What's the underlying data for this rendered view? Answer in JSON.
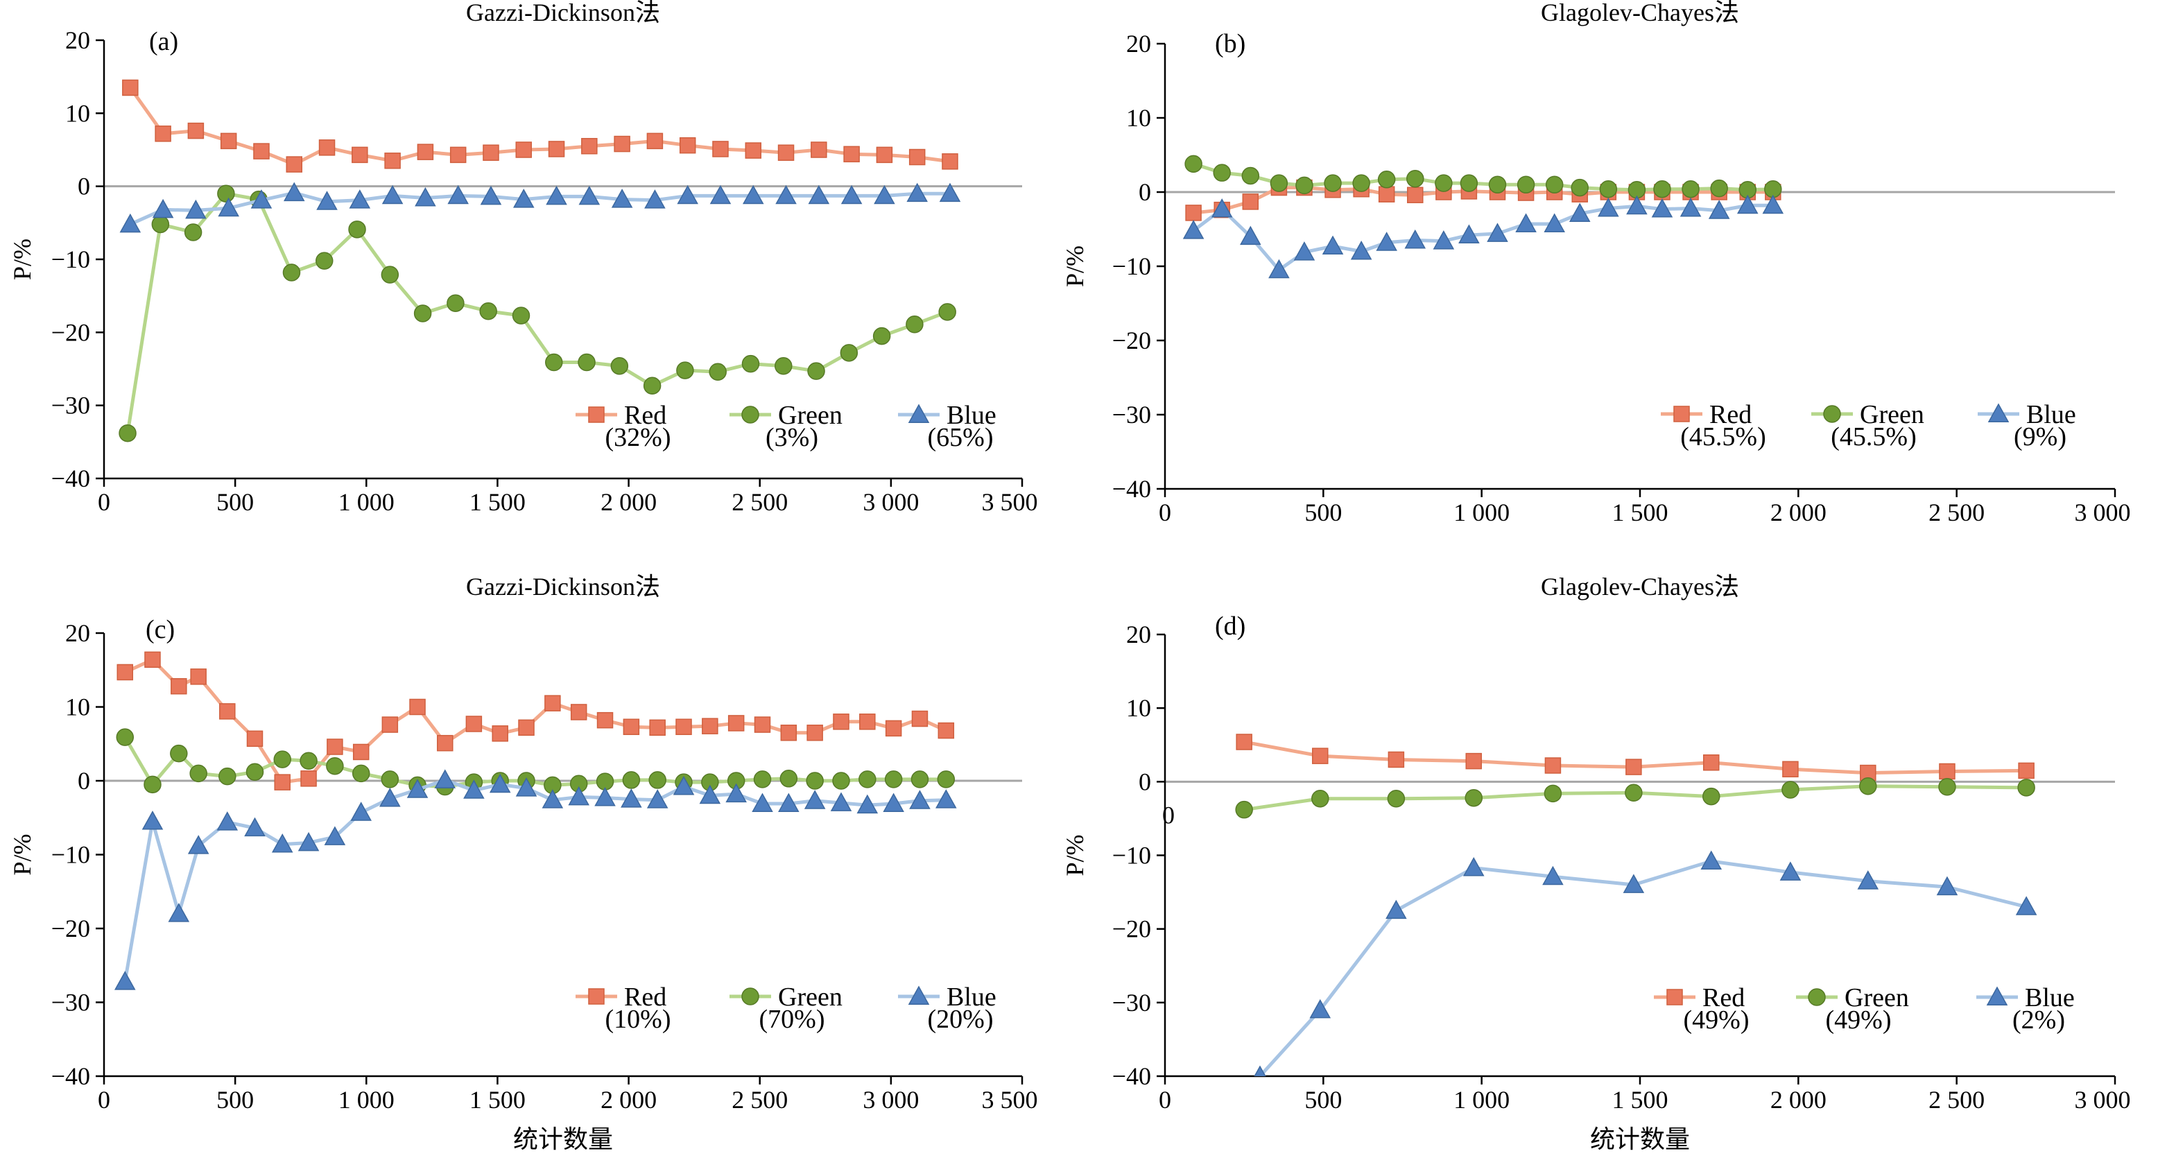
{
  "colors": {
    "red": "#E8775B",
    "red_line": "#F3A88A",
    "green": "#6E9B34",
    "green_line": "#B5D68A",
    "blue": "#4E7EBF",
    "blue_line": "#A7C4E4",
    "zero_line": "#A6A6A6"
  },
  "xlabel_common": "统计数量",
  "chart_data": [
    {
      "id": "a",
      "type": "line",
      "panel_label": "(a)",
      "title": "Gazzi-Dickinson法",
      "ylabel": "P/%",
      "xlabel": "",
      "xlim": [
        0,
        3500
      ],
      "ylim": [
        -40,
        20
      ],
      "xticks": [
        0,
        500,
        1000,
        1500,
        2000,
        2500,
        3000,
        3500
      ],
      "xtick_labels": [
        "0",
        "500",
        "1 000",
        "1 500",
        "2 000",
        "2 500",
        "3 000",
        "3 500"
      ],
      "yticks": [
        -40,
        -30,
        -20,
        -10,
        0,
        10,
        20
      ],
      "ytick_labels": [
        "−40",
        "−30",
        "−20",
        "−10",
        "0",
        "10",
        "20"
      ],
      "legend_position": "lower-right",
      "series": [
        {
          "name": "Red",
          "legend_pct": "(32%)",
          "marker": "square",
          "color": "red",
          "x": [
            100,
            225,
            350,
            475,
            600,
            725,
            850,
            975,
            1100,
            1225,
            1350,
            1475,
            1600,
            1725,
            1850,
            1975,
            2100,
            2225,
            2350,
            2475,
            2600,
            2725,
            2850,
            2975,
            3100,
            3225
          ],
          "values": [
            13.5,
            7.2,
            7.6,
            6.2,
            4.8,
            3.0,
            5.3,
            4.3,
            3.5,
            4.7,
            4.3,
            4.6,
            5.0,
            5.1,
            5.5,
            5.8,
            6.2,
            5.6,
            5.1,
            4.9,
            4.6,
            5.0,
            4.4,
            4.3,
            4.0,
            3.4
          ]
        },
        {
          "name": "Green",
          "legend_pct": "(3%)",
          "marker": "circle",
          "color": "green",
          "x": [
            90,
            215,
            340,
            465,
            590,
            715,
            840,
            965,
            1090,
            1215,
            1340,
            1465,
            1590,
            1715,
            1840,
            1965,
            2090,
            2215,
            2340,
            2465,
            2590,
            2715,
            2840,
            2965,
            3090,
            3215
          ],
          "values": [
            -33.8,
            -5.2,
            -6.3,
            -1.0,
            -1.8,
            -11.8,
            -10.2,
            -5.9,
            -12.1,
            -17.4,
            -16.0,
            -17.1,
            -17.7,
            -24.1,
            -24.1,
            -24.6,
            -27.3,
            -25.2,
            -25.4,
            -24.3,
            -24.6,
            -25.3,
            -22.8,
            -20.5,
            -18.9,
            -17.2
          ]
        },
        {
          "name": "Blue",
          "legend_pct": "(65%)",
          "marker": "triangle",
          "color": "blue",
          "x": [
            100,
            225,
            350,
            475,
            600,
            725,
            850,
            975,
            1100,
            1225,
            1350,
            1475,
            1600,
            1725,
            1850,
            1975,
            2100,
            2225,
            2350,
            2475,
            2600,
            2725,
            2850,
            2975,
            3100,
            3225
          ],
          "values": [
            -5.2,
            -3.2,
            -3.3,
            -3.0,
            -1.9,
            -0.9,
            -2.1,
            -1.9,
            -1.3,
            -1.6,
            -1.3,
            -1.4,
            -1.8,
            -1.4,
            -1.4,
            -1.8,
            -1.9,
            -1.3,
            -1.3,
            -1.3,
            -1.3,
            -1.3,
            -1.3,
            -1.3,
            -1.0,
            -1.0
          ]
        }
      ]
    },
    {
      "id": "b",
      "type": "line",
      "panel_label": "(b)",
      "title": "Glagolev-Chayes法",
      "ylabel": "P/%",
      "xlabel": "",
      "xlim": [
        0,
        3000
      ],
      "ylim": [
        -40,
        20
      ],
      "xticks": [
        0,
        500,
        1000,
        1500,
        2000,
        2500,
        3000
      ],
      "xtick_labels": [
        "0",
        "500",
        "1 000",
        "1 500",
        "2 000",
        "2 500",
        "3 000"
      ],
      "yticks": [
        -40,
        -30,
        -20,
        -10,
        0,
        10,
        20
      ],
      "ytick_labels": [
        "−40",
        "−30",
        "−20",
        "−10",
        "0",
        "10",
        "20"
      ],
      "legend_position": "lower-right",
      "series": [
        {
          "name": "Red",
          "legend_pct": "(45.5%)",
          "marker": "square",
          "color": "red",
          "x": [
            90,
            180,
            270,
            360,
            440,
            530,
            620,
            700,
            790,
            880,
            960,
            1050,
            1140,
            1230,
            1310,
            1400,
            1490,
            1570,
            1660,
            1750,
            1840,
            1920
          ],
          "values": [
            -2.8,
            -2.4,
            -1.3,
            0.6,
            0.6,
            0.3,
            0.4,
            -0.3,
            -0.4,
            0.0,
            0.1,
            0.0,
            -0.1,
            0.0,
            -0.3,
            0.0,
            0.0,
            0.0,
            0.0,
            0.0,
            0.0,
            0.0
          ]
        },
        {
          "name": "Green",
          "legend_pct": "(45.5%)",
          "marker": "circle",
          "color": "green",
          "x": [
            90,
            180,
            270,
            360,
            440,
            530,
            620,
            700,
            790,
            880,
            960,
            1050,
            1140,
            1230,
            1310,
            1400,
            1490,
            1570,
            1660,
            1750,
            1840,
            1920
          ],
          "values": [
            3.8,
            2.6,
            2.2,
            1.2,
            0.9,
            1.2,
            1.2,
            1.7,
            1.8,
            1.2,
            1.2,
            1.0,
            1.0,
            1.0,
            0.6,
            0.4,
            0.3,
            0.4,
            0.4,
            0.5,
            0.3,
            0.4
          ]
        },
        {
          "name": "Blue",
          "legend_pct": "(9%)",
          "marker": "triangle",
          "color": "blue",
          "x": [
            90,
            180,
            270,
            360,
            440,
            530,
            620,
            700,
            790,
            880,
            960,
            1050,
            1140,
            1230,
            1310,
            1400,
            1490,
            1570,
            1660,
            1750,
            1840,
            1920
          ],
          "values": [
            -5.2,
            -2.3,
            -6.0,
            -10.5,
            -8.1,
            -7.3,
            -8.0,
            -6.8,
            -6.5,
            -6.6,
            -5.8,
            -5.6,
            -4.3,
            -4.3,
            -2.9,
            -2.2,
            -1.9,
            -2.3,
            -2.2,
            -2.5,
            -1.8,
            -1.8
          ]
        }
      ]
    },
    {
      "id": "c",
      "type": "line",
      "panel_label": "(c)",
      "title": "Gazzi-Dickinson法",
      "ylabel": "P/%",
      "xlabel": "统计数量",
      "xlim": [
        0,
        3500
      ],
      "ylim": [
        -40,
        20
      ],
      "xticks": [
        0,
        500,
        1000,
        1500,
        2000,
        2500,
        3000,
        3500
      ],
      "xtick_labels": [
        "0",
        "500",
        "1 000",
        "1 500",
        "2 000",
        "2 500",
        "3 000",
        "3 500"
      ],
      "yticks": [
        -40,
        -30,
        -20,
        -10,
        0,
        10,
        20
      ],
      "ytick_labels": [
        "−40",
        "−30",
        "−20",
        "−10",
        "0",
        "10",
        "20"
      ],
      "legend_position": "lower-right",
      "series": [
        {
          "name": "Red",
          "legend_pct": "(10%)",
          "marker": "square",
          "color": "red",
          "x": [
            80,
            185,
            285,
            360,
            470,
            575,
            680,
            780,
            880,
            980,
            1090,
            1195,
            1300,
            1410,
            1510,
            1610,
            1710,
            1810,
            1910,
            2010,
            2110,
            2210,
            2310,
            2410,
            2510,
            2610,
            2710,
            2810,
            2910,
            3010,
            3110,
            3210
          ],
          "values": [
            14.7,
            16.4,
            12.8,
            14.1,
            9.4,
            5.7,
            -0.2,
            0.3,
            4.6,
            3.9,
            7.6,
            10.0,
            5.1,
            7.7,
            6.4,
            7.2,
            10.5,
            9.3,
            8.2,
            7.3,
            7.2,
            7.3,
            7.4,
            7.8,
            7.6,
            6.5,
            6.5,
            8.0,
            8.0,
            7.1,
            8.4,
            6.8
          ]
        },
        {
          "name": "Green",
          "legend_pct": "(70%)",
          "marker": "circle",
          "color": "green",
          "x": [
            80,
            185,
            285,
            360,
            470,
            575,
            680,
            780,
            880,
            980,
            1090,
            1195,
            1300,
            1410,
            1510,
            1610,
            1710,
            1810,
            1910,
            2010,
            2110,
            2210,
            2310,
            2410,
            2510,
            2610,
            2710,
            2810,
            2910,
            3010,
            3110,
            3210
          ],
          "values": [
            5.9,
            -0.5,
            3.7,
            1.0,
            0.6,
            1.2,
            2.9,
            2.7,
            2.0,
            1.0,
            0.2,
            -0.6,
            -0.8,
            -0.2,
            0.0,
            0.0,
            -0.6,
            -0.4,
            -0.1,
            0.1,
            0.1,
            -0.2,
            -0.2,
            0.0,
            0.2,
            0.3,
            0.0,
            0.0,
            0.2,
            0.2,
            0.2,
            0.2
          ]
        },
        {
          "name": "Blue",
          "legend_pct": "(20%)",
          "marker": "triangle",
          "color": "blue",
          "x": [
            80,
            185,
            285,
            360,
            470,
            575,
            680,
            780,
            880,
            980,
            1090,
            1195,
            1300,
            1410,
            1510,
            1610,
            1710,
            1810,
            1910,
            2010,
            2110,
            2210,
            2310,
            2410,
            2510,
            2610,
            2710,
            2810,
            2910,
            3010,
            3110,
            3210
          ],
          "values": [
            -27.2,
            -5.5,
            -18.0,
            -8.8,
            -5.6,
            -6.4,
            -8.6,
            -8.4,
            -7.6,
            -4.3,
            -2.4,
            -1.2,
            0.1,
            -1.3,
            -0.5,
            -1.0,
            -2.6,
            -2.2,
            -2.3,
            -2.5,
            -2.6,
            -0.8,
            -2.0,
            -1.8,
            -3.1,
            -3.1,
            -2.7,
            -3.0,
            -3.3,
            -3.1,
            -2.7,
            -2.6
          ]
        }
      ]
    },
    {
      "id": "d",
      "type": "line",
      "panel_label": "(d)",
      "title": "Glagolev-Chayes法",
      "ylabel": "P/%",
      "xlabel": "统计数量",
      "zero_marker_label": "0",
      "xlim": [
        0,
        3000
      ],
      "ylim": [
        -40,
        20
      ],
      "xticks": [
        0,
        500,
        1000,
        1500,
        2000,
        2500,
        3000
      ],
      "xtick_labels": [
        "0",
        "500",
        "1 000",
        "1 500",
        "2 000",
        "2 500",
        "3 000"
      ],
      "yticks": [
        -40,
        -30,
        -20,
        -10,
        0,
        10,
        20
      ],
      "ytick_labels": [
        "−40",
        "−30",
        "−20",
        "−10",
        "0",
        "10",
        "20"
      ],
      "legend_position": "lower-right",
      "series": [
        {
          "name": "Red",
          "legend_pct": "(49%)",
          "marker": "square",
          "color": "red",
          "x": [
            250,
            490,
            730,
            975,
            1225,
            1480,
            1725,
            1975,
            2220,
            2470,
            2720
          ],
          "values": [
            5.4,
            3.5,
            3.0,
            2.8,
            2.2,
            2.0,
            2.6,
            1.7,
            1.2,
            1.4,
            1.5
          ]
        },
        {
          "name": "Green",
          "legend_pct": "(49%)",
          "marker": "circle",
          "color": "green",
          "x": [
            250,
            490,
            730,
            975,
            1225,
            1480,
            1725,
            1975,
            2220,
            2470,
            2720
          ],
          "values": [
            -3.8,
            -2.3,
            -2.3,
            -2.2,
            -1.6,
            -1.5,
            -2.0,
            -1.1,
            -0.6,
            -0.7,
            -0.8
          ]
        },
        {
          "name": "Blue",
          "legend_pct": "(2%)",
          "marker": "triangle",
          "color": "blue",
          "x": [
            300,
            490,
            730,
            975,
            1225,
            1480,
            1725,
            1975,
            2220,
            2470,
            2720
          ],
          "values": [
            -40.0,
            -31.0,
            -17.5,
            -11.7,
            -12.9,
            -14.0,
            -10.8,
            -12.3,
            -13.5,
            -14.3,
            -17.0
          ]
        }
      ]
    }
  ]
}
